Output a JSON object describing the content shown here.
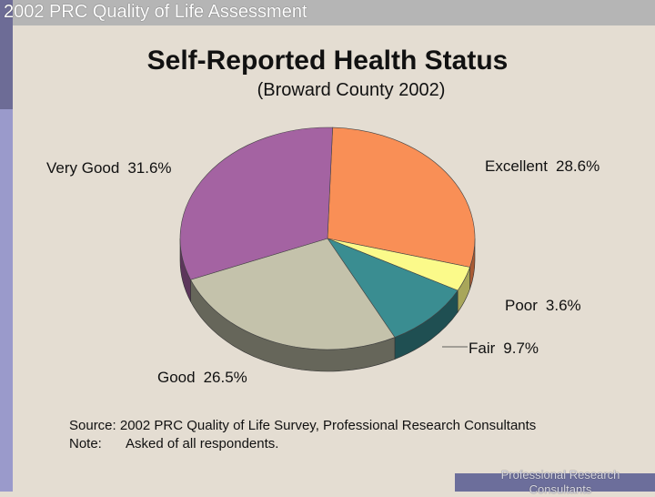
{
  "header": {
    "title": "2002 PRC Quality of Life Assessment"
  },
  "chart_data": {
    "type": "pie",
    "title": "Self-Reported Health Status",
    "subtitle": "(Broward County 2002)",
    "slices": [
      {
        "label": "Excellent",
        "value": 28.6,
        "display": "28.6%",
        "color": "#f98f56",
        "side": "#a85a34"
      },
      {
        "label": "Poor",
        "value": 3.6,
        "display": "3.6%",
        "color": "#fbfa8a",
        "side": "#a8a65a"
      },
      {
        "label": "Fair",
        "value": 9.7,
        "display": "9.7%",
        "color": "#3a8d91",
        "side": "#1f4f52"
      },
      {
        "label": "Good",
        "value": 26.5,
        "display": "26.5%",
        "color": "#c4c2ab",
        "side": "#66665a"
      },
      {
        "label": "Very Good",
        "value": 31.6,
        "display": "31.6%",
        "color": "#a463a2",
        "side": "#5c365b"
      }
    ]
  },
  "source": {
    "line1": "Source: 2002 PRC Quality of Life Survey, Professional Research Consultants",
    "note_label": "Note:",
    "note_text": "Asked of all respondents."
  },
  "footer": {
    "text": "Professional Research Consultants"
  }
}
